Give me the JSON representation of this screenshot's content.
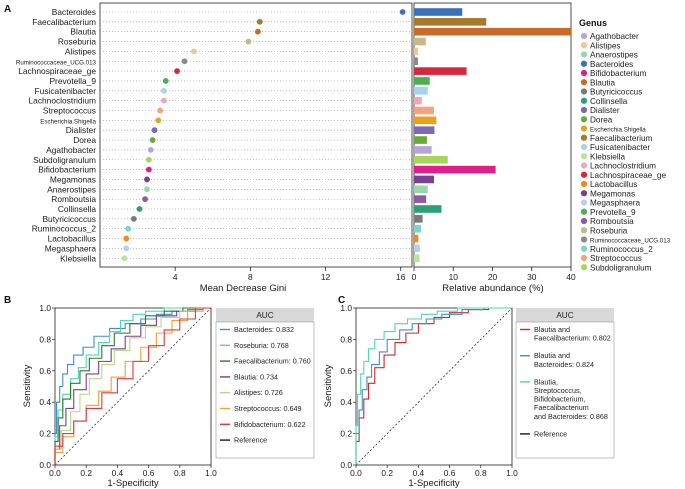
{
  "panel_labels": {
    "a": "A",
    "b": "B",
    "c": "C"
  },
  "chart_data": [
    {
      "id": "gini",
      "type": "scatter",
      "title": "",
      "xlabel": "Mean Decrease Gini",
      "ylabel": "",
      "xlim": [
        0,
        16.6
      ],
      "xticks": [
        4,
        8,
        12,
        16
      ],
      "categories": [
        "Bacteroides",
        "Faecalibacterium",
        "Blautia",
        "Roseburia",
        "Alistipes",
        "Ruminococcaceae_UCG.013",
        "Lachnospiraceae_ge",
        "Prevotella_9",
        "Fusicatenibacter",
        "Lachnoclostridium",
        "Streptococcus",
        "Escherichia.Shigella",
        "Dialister",
        "Dorea",
        "Agathobacter",
        "Subdoligranulum",
        "Bifidobacterium",
        "Megamonas",
        "Anaerostipes",
        "Romboutsia",
        "Collinsella",
        "Butyricicoccus",
        "Ruminococcus_2",
        "Lactobacillus",
        "Megasphaera",
        "Klebsiella"
      ],
      "values": [
        16.1,
        8.5,
        8.4,
        7.9,
        5.0,
        4.5,
        4.1,
        3.5,
        3.4,
        3.4,
        3.2,
        3.1,
        2.9,
        2.8,
        2.7,
        2.6,
        2.6,
        2.5,
        2.5,
        2.4,
        2.1,
        1.8,
        1.5,
        1.4,
        1.4,
        1.3
      ],
      "colors": [
        "#3a72b8",
        "#a67a2c",
        "#c96a2a",
        "#c8b98a",
        "#f4c49a",
        "#8a8a8a",
        "#d7263d",
        "#4caf50",
        "#a6d4ea",
        "#f2a7b6",
        "#f4a380",
        "#e8a21c",
        "#7a6ab8",
        "#6aaa3a",
        "#b6a6d6",
        "#a7d65a",
        "#e0208a",
        "#7a3d98",
        "#9ad6a8",
        "#8d5aa6",
        "#2aa07a",
        "#7a7a7a",
        "#7ad6c4",
        "#f08a1c",
        "#b8d0e6",
        "#bde39a"
      ]
    },
    {
      "id": "abundance",
      "type": "bar",
      "title": "",
      "xlabel": "Relative abundance (%)",
      "ylabel": "",
      "xlim": [
        0,
        40
      ],
      "xticks": [
        0,
        10,
        20,
        30,
        40
      ],
      "categories": [
        "Bacteroides",
        "Faecalibacterium",
        "Blautia",
        "Roseburia",
        "Alistipes",
        "Ruminococcaceae_UCG.013",
        "Lachnospiraceae_ge",
        "Prevotella_9",
        "Fusicatenibacter",
        "Lachnoclostridium",
        "Streptococcus",
        "Escherichia.Shigella",
        "Dialister",
        "Dorea",
        "Agathobacter",
        "Subdoligranulum",
        "Bifidobacterium",
        "Megamonas",
        "Anaerostipes",
        "Romboutsia",
        "Collinsella",
        "Butyricicoccus",
        "Ruminococcus_2",
        "Lactobacillus",
        "Megasphaera",
        "Klebsiella"
      ],
      "values": [
        12.3,
        18.4,
        42.0,
        3.0,
        1.0,
        1.0,
        13.4,
        4.0,
        3.5,
        2.0,
        5.1,
        5.7,
        5.2,
        3.3,
        4.5,
        8.6,
        20.8,
        5.1,
        3.5,
        3.1,
        7.0,
        2.2,
        1.8,
        1.1,
        1.5,
        1.4
      ],
      "colors": [
        "#3a72b8",
        "#a67a2c",
        "#c96a2a",
        "#c8b98a",
        "#f4c49a",
        "#8a8a8a",
        "#d7263d",
        "#4caf50",
        "#a6d4ea",
        "#f2a7b6",
        "#f4a380",
        "#e8a21c",
        "#7a6ab8",
        "#6aaa3a",
        "#b6a6d6",
        "#a7d65a",
        "#e0208a",
        "#7a3d98",
        "#9ad6a8",
        "#8d5aa6",
        "#2aa07a",
        "#7a7a7a",
        "#7ad6c4",
        "#f08a1c",
        "#b8d0e6",
        "#bde39a"
      ]
    },
    {
      "id": "roc_single",
      "type": "line",
      "title": "",
      "xlabel": "1-Specificity",
      "ylabel": "Sensitivity",
      "xlim": [
        0,
        1
      ],
      "ylim": [
        0,
        1
      ],
      "ticks": [
        "0.0",
        "0.2",
        "0.4",
        "0.6",
        "0.8",
        "1.0"
      ],
      "legend_title": "AUC",
      "series": [
        {
          "name": "Bacteroides: 0.832",
          "color": "#3a8fcf",
          "points": [
            [
              0,
              0
            ],
            [
              0.01,
              0.2
            ],
            [
              0.03,
              0.4
            ],
            [
              0.05,
              0.5
            ],
            [
              0.08,
              0.58
            ],
            [
              0.12,
              0.64
            ],
            [
              0.18,
              0.7
            ],
            [
              0.25,
              0.75
            ],
            [
              0.35,
              0.82
            ],
            [
              0.45,
              0.87
            ],
            [
              0.55,
              0.9
            ],
            [
              0.65,
              0.93
            ],
            [
              0.75,
              0.96
            ],
            [
              0.85,
              0.98
            ],
            [
              0.95,
              0.99
            ],
            [
              1,
              1
            ]
          ]
        },
        {
          "name": "Roseburia: 0.768",
          "color": "#4fd6b4",
          "points": [
            [
              0,
              0
            ],
            [
              0.02,
              0.18
            ],
            [
              0.05,
              0.35
            ],
            [
              0.1,
              0.45
            ],
            [
              0.15,
              0.55
            ],
            [
              0.2,
              0.62
            ],
            [
              0.28,
              0.7
            ],
            [
              0.35,
              0.78
            ],
            [
              0.42,
              0.85
            ],
            [
              0.5,
              0.92
            ],
            [
              0.58,
              0.96
            ],
            [
              0.7,
              0.98
            ],
            [
              0.85,
              1
            ],
            [
              1,
              1
            ]
          ]
        },
        {
          "name": "Faecalibacterium: 0.760",
          "color": "#2c7a2c",
          "points": [
            [
              0,
              0
            ],
            [
              0.02,
              0.15
            ],
            [
              0.05,
              0.3
            ],
            [
              0.1,
              0.42
            ],
            [
              0.16,
              0.52
            ],
            [
              0.22,
              0.6
            ],
            [
              0.3,
              0.68
            ],
            [
              0.38,
              0.76
            ],
            [
              0.48,
              0.84
            ],
            [
              0.58,
              0.9
            ],
            [
              0.7,
              0.95
            ],
            [
              0.82,
              0.98
            ],
            [
              1,
              1
            ]
          ]
        },
        {
          "name": "Blautia: 0.734",
          "color": "#7a3d98",
          "points": [
            [
              0,
              0
            ],
            [
              0.03,
              0.1
            ],
            [
              0.07,
              0.25
            ],
            [
              0.12,
              0.36
            ],
            [
              0.2,
              0.48
            ],
            [
              0.28,
              0.58
            ],
            [
              0.36,
              0.66
            ],
            [
              0.45,
              0.74
            ],
            [
              0.55,
              0.82
            ],
            [
              0.65,
              0.89
            ],
            [
              0.78,
              0.95
            ],
            [
              0.9,
              0.98
            ],
            [
              1,
              1
            ]
          ]
        },
        {
          "name": "Alistipes: 0.726",
          "color": "#b8d88a",
          "points": [
            [
              0,
              0
            ],
            [
              0.04,
              0.1
            ],
            [
              0.1,
              0.22
            ],
            [
              0.16,
              0.34
            ],
            [
              0.22,
              0.45
            ],
            [
              0.3,
              0.55
            ],
            [
              0.38,
              0.64
            ],
            [
              0.48,
              0.73
            ],
            [
              0.58,
              0.81
            ],
            [
              0.68,
              0.88
            ],
            [
              0.8,
              0.94
            ],
            [
              0.9,
              0.98
            ],
            [
              1,
              1
            ]
          ]
        },
        {
          "name": "Streptococcus: 0.649",
          "color": "#f0a03a",
          "points": [
            [
              0,
              0
            ],
            [
              0.05,
              0.08
            ],
            [
              0.12,
              0.18
            ],
            [
              0.2,
              0.28
            ],
            [
              0.28,
              0.38
            ],
            [
              0.36,
              0.47
            ],
            [
              0.45,
              0.56
            ],
            [
              0.55,
              0.66
            ],
            [
              0.65,
              0.75
            ],
            [
              0.75,
              0.84
            ],
            [
              0.85,
              0.92
            ],
            [
              0.95,
              0.98
            ],
            [
              1,
              1
            ]
          ]
        },
        {
          "name": "Bifidobacterium: 0.622",
          "color": "#e03a3a",
          "points": [
            [
              0,
              0
            ],
            [
              0.05,
              0.12
            ],
            [
              0.12,
              0.2
            ],
            [
              0.2,
              0.28
            ],
            [
              0.3,
              0.36
            ],
            [
              0.4,
              0.46
            ],
            [
              0.5,
              0.55
            ],
            [
              0.6,
              0.66
            ],
            [
              0.7,
              0.76
            ],
            [
              0.8,
              0.86
            ],
            [
              0.9,
              0.93
            ],
            [
              1,
              1
            ]
          ]
        },
        {
          "name": "Reference",
          "color": "#1a1a1a",
          "dashed": true,
          "points": [
            [
              0,
              0
            ],
            [
              1,
              1
            ]
          ]
        }
      ]
    },
    {
      "id": "roc_combo",
      "type": "line",
      "title": "",
      "xlabel": "1-Specificity",
      "ylabel": "Sensitivity",
      "xlim": [
        0,
        1
      ],
      "ylim": [
        0,
        1
      ],
      "ticks": [
        "0.0",
        "0.2",
        "0.4",
        "0.6",
        "0.8",
        "1.0"
      ],
      "legend_title": "AUC",
      "series": [
        {
          "name": "Blautia and Faecalibacterium: 0.802",
          "label_lines": [
            "Blautia and",
            "Faecalibacterium: 0.802"
          ],
          "color": "#d02a2a",
          "points": [
            [
              0,
              0
            ],
            [
              0.02,
              0.15
            ],
            [
              0.05,
              0.3
            ],
            [
              0.08,
              0.42
            ],
            [
              0.12,
              0.52
            ],
            [
              0.18,
              0.62
            ],
            [
              0.25,
              0.7
            ],
            [
              0.32,
              0.78
            ],
            [
              0.4,
              0.84
            ],
            [
              0.5,
              0.9
            ],
            [
              0.6,
              0.94
            ],
            [
              0.72,
              0.97
            ],
            [
              0.85,
              0.99
            ],
            [
              1,
              1
            ]
          ]
        },
        {
          "name": "Blautia and Bacteroides: 0.824",
          "label_lines": [
            "Blautia and",
            "Bacteroides: 0.824"
          ],
          "color": "#3a8fcf",
          "points": [
            [
              0,
              0
            ],
            [
              0.02,
              0.2
            ],
            [
              0.04,
              0.35
            ],
            [
              0.07,
              0.48
            ],
            [
              0.1,
              0.56
            ],
            [
              0.15,
              0.64
            ],
            [
              0.2,
              0.72
            ],
            [
              0.28,
              0.8
            ],
            [
              0.36,
              0.86
            ],
            [
              0.45,
              0.9
            ],
            [
              0.55,
              0.93
            ],
            [
              0.68,
              0.96
            ],
            [
              0.82,
              0.99
            ],
            [
              1,
              1
            ]
          ]
        },
        {
          "name": "Blautia, Streptococcus, Bifidobacterium, Faecalibacterium and Bacteroides: 0.868",
          "label_lines": [
            "Blautia,",
            "Streptococcus,",
            "Bifidobacterium,",
            "Faecalibacterium",
            "and Bacteroides: 0.868"
          ],
          "color": "#4fd6b4",
          "points": [
            [
              0,
              0
            ],
            [
              0.01,
              0.25
            ],
            [
              0.03,
              0.45
            ],
            [
              0.05,
              0.58
            ],
            [
              0.08,
              0.66
            ],
            [
              0.12,
              0.74
            ],
            [
              0.18,
              0.8
            ],
            [
              0.25,
              0.85
            ],
            [
              0.33,
              0.9
            ],
            [
              0.42,
              0.93
            ],
            [
              0.52,
              0.96
            ],
            [
              0.65,
              0.98
            ],
            [
              0.8,
              1
            ],
            [
              1,
              1
            ]
          ]
        },
        {
          "name": "Reference",
          "label_lines": [
            "Reference"
          ],
          "color": "#1a1a1a",
          "dashed": true,
          "points": [
            [
              0,
              0
            ],
            [
              1,
              1
            ]
          ]
        }
      ]
    }
  ],
  "genus_legend": {
    "title": "Genus",
    "items": [
      "Agathobacter",
      "Alistipes",
      "Anaerostipes",
      "Bacteroides",
      "Bifidobacterium",
      "Blautia",
      "Butyricicoccus",
      "Collinsella",
      "Dialister",
      "Dorea",
      "Escherichia.Shigella",
      "Faecalibacterium",
      "Fusicatenibacter",
      "Klebsiella",
      "Lachnoclostridium",
      "Lachnospiraceae_ge",
      "Lactobacillus",
      "Megamonas",
      "Megasphaera",
      "Prevotella_9",
      "Romboutsia",
      "Roseburia",
      "Ruminococcaceae_UCG.013",
      "Ruminococcus_2",
      "Streptococcus",
      "Subdoligranulum"
    ],
    "colors": [
      "#b6a6d6",
      "#f4c49a",
      "#9ad6a8",
      "#3a72b8",
      "#e0208a",
      "#c96a2a",
      "#7a7a7a",
      "#2aa07a",
      "#7a6ab8",
      "#6aaa3a",
      "#e8a21c",
      "#a67a2c",
      "#a6d4ea",
      "#bde39a",
      "#f2a7b6",
      "#d7263d",
      "#f08a1c",
      "#7a3d98",
      "#b8d0e6",
      "#4caf50",
      "#8d5aa6",
      "#c8b98a",
      "#8a8a8a",
      "#7ad6c4",
      "#f4a380",
      "#a7d65a"
    ]
  }
}
